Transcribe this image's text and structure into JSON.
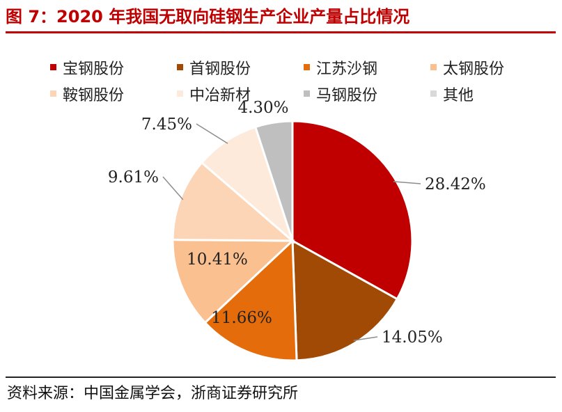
{
  "figure": {
    "title": "图 7：2020 年我国无取向硅钢生产企业产量占比情况",
    "source": "资料来源：中国金属学会，浙商证券研究所"
  },
  "chart_data": {
    "type": "pie",
    "title": "",
    "legend_position": "top",
    "unit": "%",
    "slices": [
      {
        "name": "宝钢股份",
        "value": 28.42,
        "label": "28.42%",
        "color": "#c00000"
      },
      {
        "name": "首钢股份",
        "value": 14.05,
        "label": "14.05%",
        "color": "#a04a06"
      },
      {
        "name": "江苏沙钢",
        "value": 11.66,
        "label": "11.66%",
        "color": "#e46c0a"
      },
      {
        "name": "太钢股份",
        "value": 10.41,
        "label": "10.41%",
        "color": "#fac090"
      },
      {
        "name": "鞍钢股份",
        "value": 9.61,
        "label": "9.61%",
        "color": "#fbd5b5"
      },
      {
        "name": "中冶新材",
        "value": 7.45,
        "label": "7.45%",
        "color": "#fdeada"
      },
      {
        "name": "马钢股份",
        "value": 4.3,
        "label": "4.30%",
        "color": "#bfbfbf"
      },
      {
        "name": "其他",
        "value": 0,
        "label": "",
        "color": "#d9d9d9"
      }
    ]
  }
}
